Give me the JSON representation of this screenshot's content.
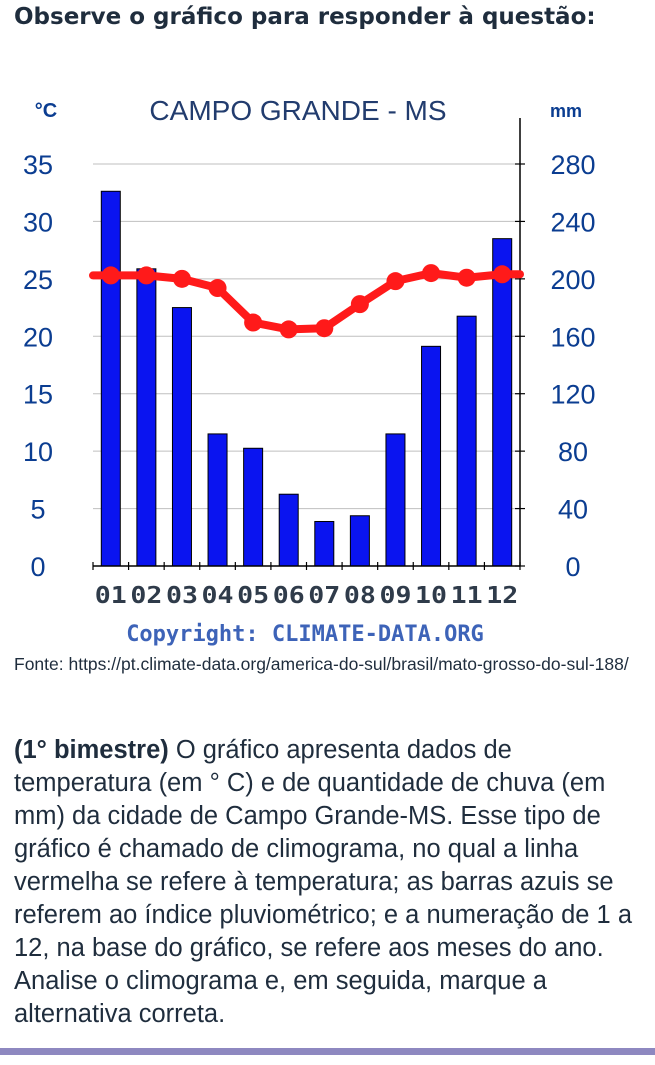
{
  "question": {
    "heading": "Observe o gráfico para responder à questão:",
    "source": "Fonte: https://pt.climate-data.org/america-do-sul/brasil/mato-grosso-do-sul-188/",
    "bold_prefix": "(1° bimestre)",
    "body": " O gráfico apresenta dados de temperatura (em ° C) e de quantidade de chuva (em mm) da cidade de Campo Grande-MS. Esse tipo de gráfico é chamado de climograma, no qual a linha vermelha se refere à temperatura; as barras azuis se referem ao índice pluviométrico; e a numeração de 1 a 12, na base do gráfico, se refere aos meses do ano. Analise o climograma e, em seguida, marque a alternativa correta."
  },
  "chart_data": {
    "type": "bar",
    "title": "CAMPO GRANDE - MS",
    "y_left_unit": "°C",
    "y_right_unit": "mm",
    "copyright": "Copyright: CLIMATE-DATA.ORG",
    "categories": [
      "01",
      "02",
      "03",
      "04",
      "05",
      "06",
      "07",
      "08",
      "09",
      "10",
      "11",
      "12"
    ],
    "left_ticks": [
      "0",
      "5",
      "10",
      "15",
      "20",
      "25",
      "30",
      "35"
    ],
    "right_ticks": [
      "0",
      "40",
      "80",
      "120",
      "160",
      "200",
      "240",
      "280"
    ],
    "ylim_left": [
      0,
      35
    ],
    "ylim_right": [
      0,
      280
    ],
    "grid": true,
    "series": [
      {
        "type": "bar",
        "axis": "right",
        "color": "#0a14f0",
        "values": [
          261,
          207,
          180,
          92,
          82,
          50,
          31,
          35,
          92,
          153,
          174,
          228
        ]
      },
      {
        "type": "line",
        "axis": "left",
        "color": "#ff1a1a",
        "values": [
          25.3,
          25.3,
          25.0,
          24.2,
          21.2,
          20.6,
          20.7,
          22.8,
          24.8,
          25.5,
          25.1,
          25.4
        ]
      }
    ]
  }
}
